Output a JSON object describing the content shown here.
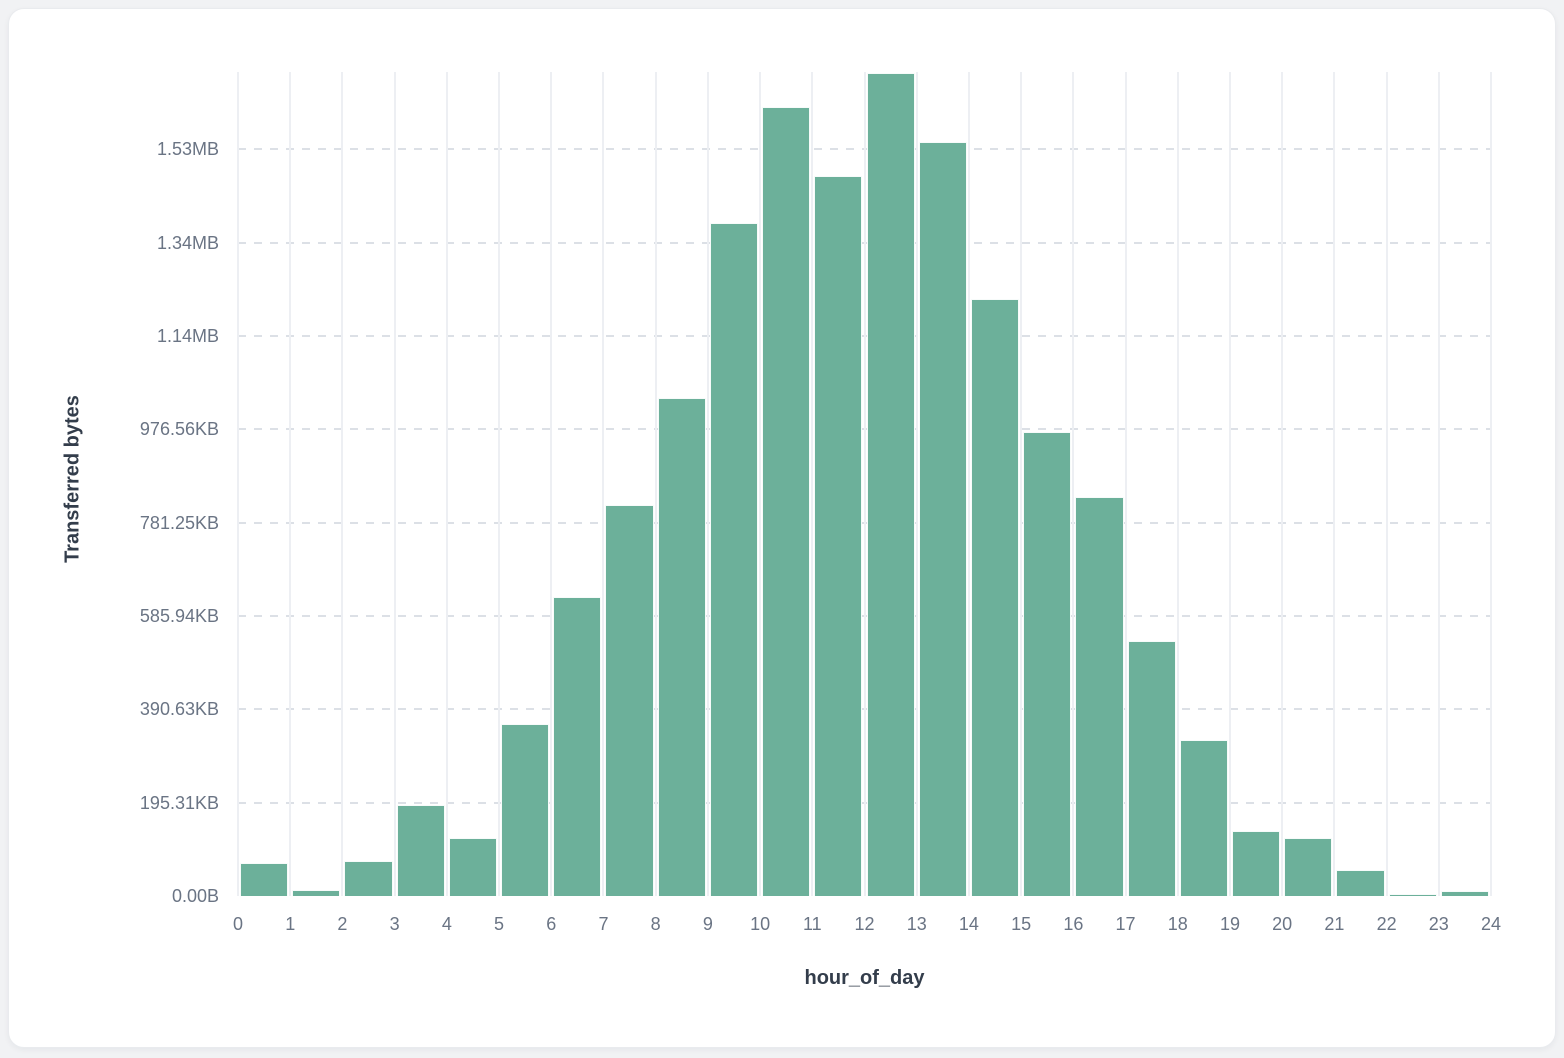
{
  "page": {
    "background_color": "#f1f2f4",
    "card_background_color": "#ffffff"
  },
  "chart_data": {
    "type": "bar",
    "title": "",
    "xlabel": "hour_of_day",
    "ylabel": "Transferred bytes",
    "categories": [
      0,
      1,
      2,
      3,
      4,
      5,
      6,
      7,
      8,
      9,
      10,
      11,
      12,
      13,
      14,
      15,
      16,
      17,
      18,
      19,
      20,
      21,
      22,
      23
    ],
    "values": [
      70700,
      12900,
      75000,
      195000,
      124300,
      368700,
      640900,
      838200,
      1067500,
      1442700,
      1691300,
      1543400,
      1764200,
      1616300,
      1279700,
      994600,
      855300,
      546600,
      334400,
      139300,
      124300,
      55700,
      4300,
      10700
    ],
    "values_unit": "bytes",
    "xlim": [
      0,
      24
    ],
    "ylim": [
      0,
      1766000
    ],
    "x_tick_labels": [
      "0",
      "1",
      "2",
      "3",
      "4",
      "5",
      "6",
      "7",
      "8",
      "9",
      "10",
      "11",
      "12",
      "13",
      "14",
      "15",
      "16",
      "17",
      "18",
      "19",
      "20",
      "21",
      "22",
      "23",
      "24"
    ],
    "y_ticks": [
      {
        "value": 0,
        "label": "0.00B"
      },
      {
        "value": 200000,
        "label": "195.31KB"
      },
      {
        "value": 400000,
        "label": "390.63KB"
      },
      {
        "value": 600000,
        "label": "585.94KB"
      },
      {
        "value": 800000,
        "label": "781.25KB"
      },
      {
        "value": 1000000,
        "label": "976.56KB"
      },
      {
        "value": 1200000,
        "label": "1.14MB"
      },
      {
        "value": 1400000,
        "label": "1.34MB"
      },
      {
        "value": 1600000,
        "label": "1.53MB"
      }
    ],
    "grid": true,
    "legend": "none",
    "bar_color": "#6cb09a",
    "vertical_grid_color": "#edeff3",
    "horizontal_grid_color": "#dce0e6",
    "tick_label_color": "#6a7484",
    "axis_title_color": "#333d4b"
  }
}
